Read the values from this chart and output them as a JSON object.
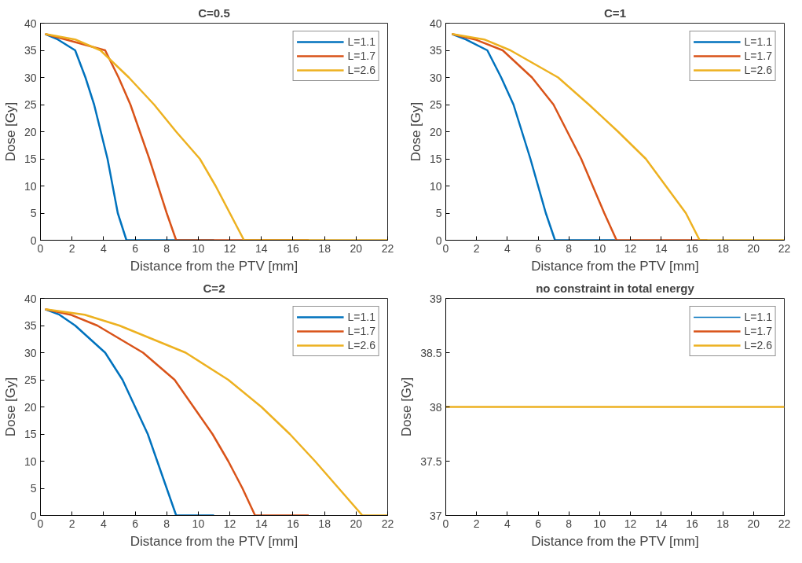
{
  "chart_data": [
    {
      "type": "line",
      "title": "C=0.5",
      "xlabel": "Distance from the PTV [mm]",
      "ylabel": "Dose [Gy]",
      "xlim": [
        0,
        22
      ],
      "ylim": [
        0,
        40
      ],
      "xticks": [
        0,
        2,
        4,
        6,
        8,
        10,
        12,
        14,
        16,
        18,
        20,
        22
      ],
      "yticks": [
        0,
        5,
        10,
        15,
        20,
        25,
        30,
        35,
        40
      ],
      "legend": "top right",
      "series": [
        {
          "name": "L=1.1",
          "color": "#0072bd",
          "x": [
            0.3,
            1.1,
            2.2,
            2.85,
            3.4,
            4.25,
            4.9,
            5.45,
            11
          ],
          "values": [
            38,
            37,
            35,
            30,
            25,
            15,
            5,
            0,
            0
          ]
        },
        {
          "name": "L=1.7",
          "color": "#d95319",
          "x": [
            0.3,
            1.6,
            4.1,
            4.95,
            5.7,
            6.9,
            8.0,
            8.6,
            17
          ],
          "values": [
            38,
            37,
            35,
            30,
            25,
            15,
            5,
            0,
            0
          ]
        },
        {
          "name": "L=2.6",
          "color": "#edb120",
          "x": [
            0.3,
            2.2,
            3.8,
            5.6,
            7.2,
            8.6,
            10.1,
            11.1,
            12.0,
            12.9,
            22
          ],
          "values": [
            38,
            37,
            35,
            30,
            25,
            20,
            15,
            10,
            5,
            0,
            0
          ]
        }
      ]
    },
    {
      "type": "line",
      "title": "C=1",
      "xlabel": "Distance from the PTV [mm]",
      "ylabel": "Dose [Gy]",
      "xlim": [
        0,
        22
      ],
      "ylim": [
        0,
        40
      ],
      "xticks": [
        0,
        2,
        4,
        6,
        8,
        10,
        12,
        14,
        16,
        18,
        20,
        22
      ],
      "yticks": [
        0,
        5,
        10,
        15,
        20,
        25,
        30,
        35,
        40
      ],
      "legend": "top right",
      "series": [
        {
          "name": "L=1.1",
          "color": "#0072bd",
          "x": [
            0.4,
            1.3,
            2.7,
            3.6,
            4.4,
            5.5,
            6.5,
            7.1,
            11
          ],
          "values": [
            38,
            37,
            35,
            30,
            25,
            15,
            5,
            0,
            0
          ]
        },
        {
          "name": "L=1.7",
          "color": "#d95319",
          "x": [
            0.4,
            1.9,
            3.7,
            5.6,
            7.0,
            8.8,
            10.3,
            11.1,
            17
          ],
          "values": [
            38,
            37,
            35,
            30,
            25,
            15,
            5,
            0,
            0
          ]
        },
        {
          "name": "L=2.6",
          "color": "#edb120",
          "x": [
            0.4,
            2.5,
            4.2,
            7.3,
            9.3,
            11.2,
            13.0,
            14.3,
            15.6,
            16.5,
            22
          ],
          "values": [
            38,
            37,
            35,
            30,
            25,
            20,
            15,
            10,
            5,
            0,
            0
          ]
        }
      ]
    },
    {
      "type": "line",
      "title": "C=2",
      "xlabel": "Distance from the PTV [mm]",
      "ylabel": "Dose [Gy]",
      "xlim": [
        0,
        22
      ],
      "ylim": [
        0,
        40
      ],
      "xticks": [
        0,
        2,
        4,
        6,
        8,
        10,
        12,
        14,
        16,
        18,
        20,
        22
      ],
      "yticks": [
        0,
        5,
        10,
        15,
        20,
        25,
        30,
        35,
        40
      ],
      "legend": "top right",
      "series": [
        {
          "name": "L=1.1",
          "color": "#0072bd",
          "x": [
            0.3,
            1.2,
            2.2,
            4.1,
            5.2,
            6.0,
            6.8,
            7.4,
            8.0,
            8.6,
            11
          ],
          "values": [
            38,
            37,
            35,
            30,
            25,
            20,
            15,
            10,
            5,
            0,
            0
          ]
        },
        {
          "name": "L=1.7",
          "color": "#d95319",
          "x": [
            0.3,
            1.9,
            3.6,
            6.5,
            8.5,
            9.7,
            10.9,
            11.9,
            12.8,
            13.6,
            17
          ],
          "values": [
            38,
            37,
            35,
            30,
            25,
            20,
            15,
            10,
            5,
            0,
            0
          ]
        },
        {
          "name": "L=2.6",
          "color": "#edb120",
          "x": [
            0.3,
            2.8,
            5.0,
            9.2,
            11.9,
            14.0,
            15.8,
            17.4,
            18.9,
            20.4,
            22
          ],
          "values": [
            38,
            37,
            35,
            30,
            25,
            20,
            15,
            10,
            5,
            0,
            0
          ]
        }
      ]
    },
    {
      "type": "line",
      "title": "no constraint in total energy",
      "xlabel": "Distance from the PTV [mm]",
      "ylabel": "Dose [Gy]",
      "xlim": [
        0,
        22
      ],
      "ylim": [
        37,
        39
      ],
      "xticks": [
        0,
        2,
        4,
        6,
        8,
        10,
        12,
        14,
        16,
        18,
        20,
        22
      ],
      "yticks": [
        37,
        37.5,
        38,
        38.5,
        39
      ],
      "legend": "top right",
      "series": [
        {
          "name": "L=1.1",
          "color": "#0072bd",
          "values": [
            null,
            null
          ]
        },
        {
          "name": "L=1.7",
          "color": "#d95319",
          "values": [
            null,
            null
          ]
        },
        {
          "name": "L=2.6",
          "color": "#edb120",
          "x": [
            0,
            22
          ],
          "values": [
            38,
            38
          ]
        }
      ]
    }
  ]
}
